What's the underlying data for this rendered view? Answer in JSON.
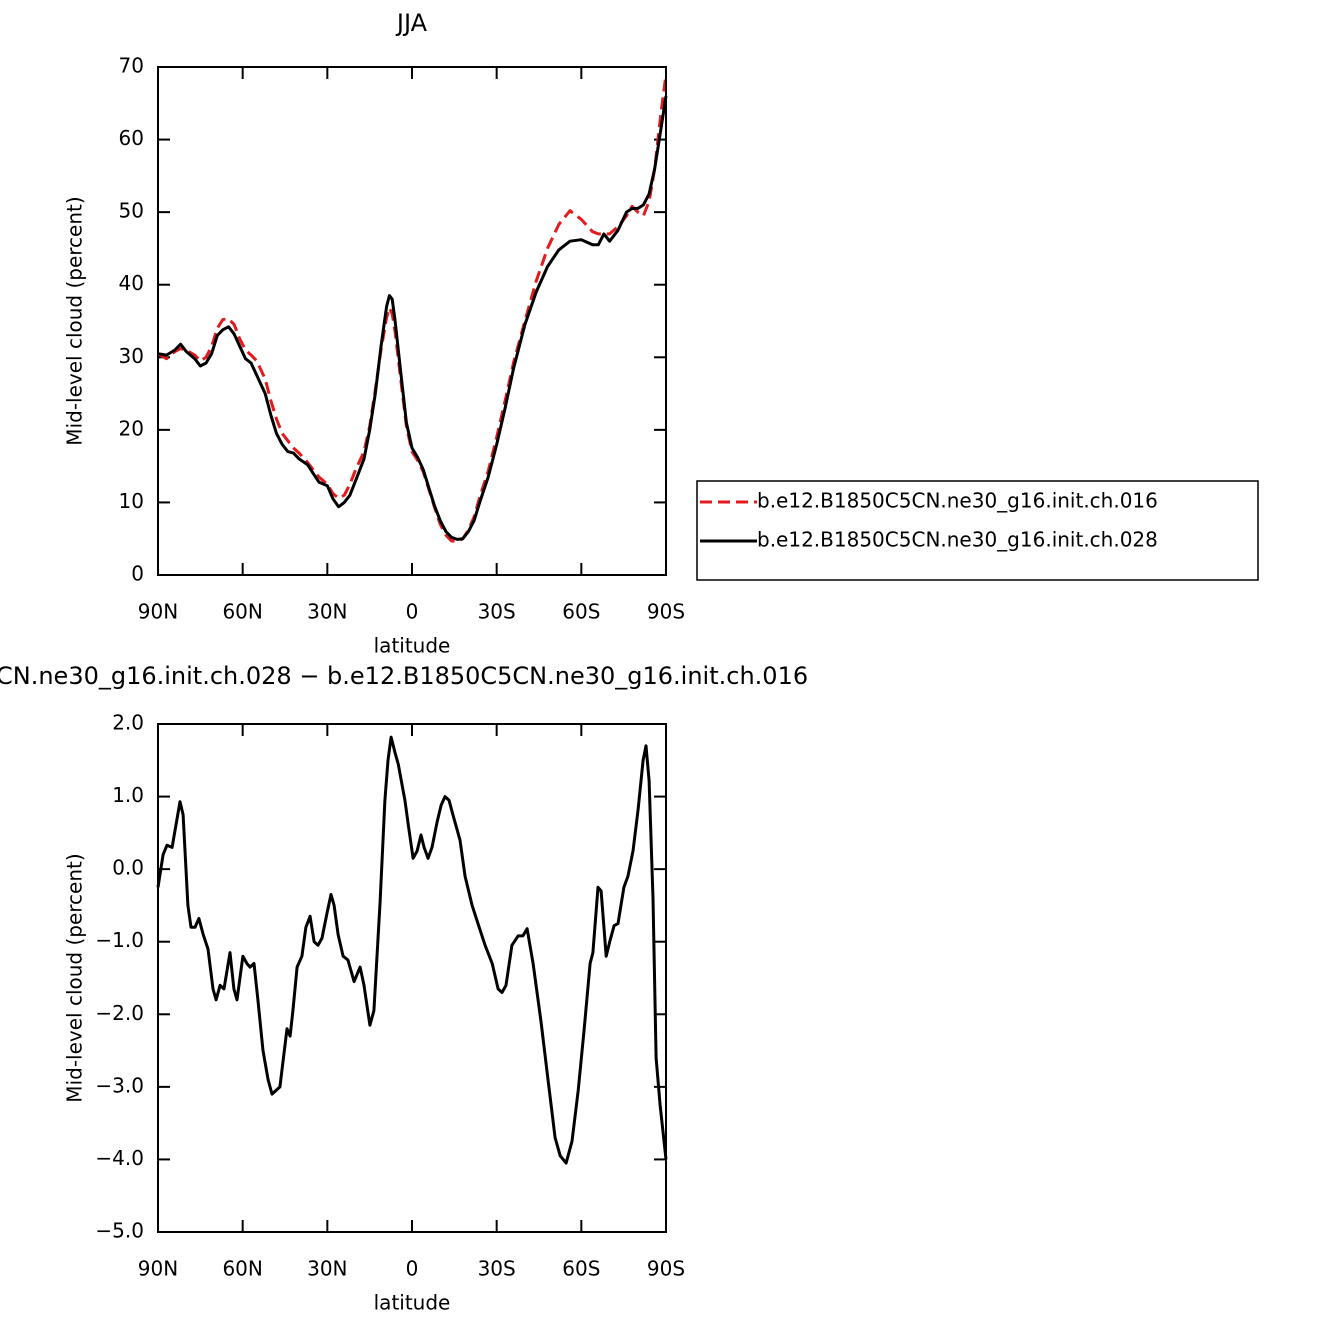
{
  "chart_data": [
    {
      "type": "line",
      "title": "JJA",
      "xlabel": "latitude",
      "ylabel": "Mid-level cloud (percent)",
      "xlim": [
        90,
        -90
      ],
      "ylim": [
        0,
        70
      ],
      "xticks": [
        {
          "value": 90,
          "label": "90N"
        },
        {
          "value": 60,
          "label": "60N"
        },
        {
          "value": 30,
          "label": "30N"
        },
        0,
        {
          "value": -30,
          "label": "30S"
        },
        {
          "value": -60,
          "label": "60S"
        },
        {
          "value": -90,
          "label": "90S"
        }
      ],
      "yticks": [
        0,
        10,
        20,
        30,
        40,
        50,
        60,
        70
      ],
      "legend": "right",
      "x": [
        90,
        87,
        84,
        82,
        80,
        77,
        75,
        73,
        71,
        69,
        67,
        65,
        63,
        61,
        59,
        57,
        55,
        52,
        50,
        48,
        46,
        44,
        42,
        40,
        37,
        35,
        33,
        30,
        28,
        26,
        24,
        22,
        20,
        17,
        15,
        13,
        11,
        9,
        8,
        7,
        6,
        4,
        2,
        0,
        -2,
        -4,
        -6,
        -8,
        -10,
        -12,
        -14,
        -16,
        -18,
        -20,
        -22,
        -24,
        -27,
        -30,
        -33,
        -36,
        -40,
        -44,
        -48,
        -52,
        -56,
        -60,
        -64,
        -66,
        -68,
        -70,
        -73,
        -76,
        -78,
        -80,
        -82,
        -84,
        -86,
        -88,
        -90
      ],
      "series": [
        {
          "name": "b.e12.B1850C5CN.ne30_g16.init.ch.016",
          "color": "#e41a1c",
          "style": "dashed",
          "values": [
            30.5,
            29.8,
            30.8,
            31.2,
            31.0,
            30.3,
            29.5,
            30.0,
            31.5,
            34.0,
            35.2,
            35.3,
            34.5,
            32.5,
            31.0,
            30.3,
            29.5,
            27.0,
            24.0,
            21.5,
            19.5,
            18.5,
            17.5,
            16.8,
            15.5,
            14.5,
            13.5,
            12.5,
            11.2,
            10.6,
            11.0,
            12.5,
            14.5,
            17.0,
            20.5,
            25.5,
            31.0,
            35.5,
            36.8,
            36.0,
            33.5,
            27.0,
            20.5,
            17.0,
            15.8,
            14.2,
            11.8,
            9.3,
            7.0,
            5.5,
            4.7,
            4.6,
            5.0,
            6.2,
            8.0,
            10.7,
            14.3,
            19.0,
            24.0,
            29.3,
            35.0,
            40.5,
            45.0,
            48.3,
            50.2,
            49.0,
            47.3,
            47.0,
            47.0,
            47.0,
            48.0,
            49.5,
            50.8,
            50.0,
            49.5,
            51.5,
            56.0,
            63.0,
            69.0
          ]
        },
        {
          "name": "b.e12.B1850C5CN.ne30_g16.init.ch.028",
          "color": "#000000",
          "style": "solid",
          "values": [
            30.5,
            30.3,
            31.0,
            31.8,
            30.8,
            29.8,
            28.8,
            29.2,
            30.5,
            33.0,
            33.8,
            34.2,
            33.2,
            31.5,
            29.8,
            29.2,
            27.5,
            25.0,
            22.0,
            19.5,
            18.0,
            17.0,
            16.8,
            16.0,
            15.2,
            14.0,
            12.8,
            12.3,
            10.5,
            9.4,
            10.0,
            11.0,
            13.0,
            16.0,
            20.0,
            25.0,
            31.5,
            37.0,
            38.5,
            38.0,
            35.0,
            28.0,
            21.0,
            17.5,
            16.2,
            14.5,
            12.0,
            9.5,
            7.5,
            6.0,
            5.2,
            4.9,
            5.0,
            6.0,
            7.5,
            10.0,
            13.5,
            18.0,
            23.0,
            28.5,
            34.5,
            39.0,
            42.5,
            44.8,
            46.0,
            46.2,
            45.5,
            45.5,
            47.0,
            46.0,
            47.5,
            50.0,
            50.5,
            50.5,
            51.0,
            52.5,
            56.0,
            61.0,
            66.0
          ]
        }
      ]
    },
    {
      "type": "line",
      "title": "CN.ne30_g16.init.ch.028 − b.e12.B1850C5CN.ne30_g16.init.ch.016",
      "xlabel": "latitude",
      "ylabel": "Mid-level cloud (percent)",
      "xlim": [
        90,
        -90
      ],
      "ylim": [
        -5,
        2
      ],
      "xticks": [
        {
          "value": 90,
          "label": "90N"
        },
        {
          "value": 60,
          "label": "60N"
        },
        {
          "value": 30,
          "label": "30N"
        },
        0,
        {
          "value": -30,
          "label": "30S"
        },
        {
          "value": -60,
          "label": "60S"
        },
        {
          "value": -90,
          "label": "90S"
        }
      ],
      "yticks": [
        {
          "value": -5,
          "label": "−5.0"
        },
        {
          "value": -4,
          "label": "−4.0"
        },
        {
          "value": -3,
          "label": "−3.0"
        },
        {
          "value": -2,
          "label": "−2.0"
        },
        {
          "value": -1,
          "label": "−1.0"
        },
        {
          "value": 0,
          "label": "0.0"
        },
        {
          "value": 1,
          "label": "1.0"
        },
        {
          "value": 2,
          "label": "2.0"
        }
      ],
      "x": [
        90,
        88.2,
        86.8,
        85,
        82.2,
        81.1,
        79.4,
        78.3,
        76.9,
        75.5,
        74,
        72.3,
        70.5,
        69.4,
        68,
        66.6,
        64.5,
        63.1,
        62,
        59.9,
        58.5,
        57.4,
        56,
        54.6,
        52.8,
        51,
        49.6,
        46.8,
        44.3,
        43.2,
        42.2,
        40.7,
        39,
        37.6,
        36.1,
        34.7,
        33.3,
        31.9,
        30.1,
        28.7,
        27.6,
        26.2,
        24.4,
        22.7,
        20.5,
        18.4,
        17,
        14.9,
        13.5,
        11.3,
        9.6,
        8.5,
        7.4,
        6,
        4.9,
        2.5,
        1.1,
        -0.4,
        -1.8,
        -3.2,
        -4.3,
        -5.7,
        -7.1,
        -8.9,
        -10.3,
        -11.7,
        -13.1,
        -14.5,
        -17,
        -18.8,
        -21.3,
        -23.4,
        -25.9,
        -28.4,
        -30.5,
        -31.9,
        -33.3,
        -35.4,
        -37.6,
        -39.3,
        -40.8,
        -42.9,
        -45.7,
        -48.2,
        -50.7,
        -52.5,
        -54.6,
        -56.7,
        -58.9,
        -61,
        -63.1,
        -64.1,
        -65.9,
        -67,
        -68.8,
        -70.2,
        -71.6,
        -73,
        -75.1,
        -76.5,
        -78.3,
        -80.1,
        -81.9,
        -82.9,
        -84,
        -85.4,
        -86.5,
        -87.9,
        -90
      ],
      "series": [
        {
          "color": "#000000",
          "style": "solid",
          "values": [
            -0.25,
            0.2,
            0.33,
            0.3,
            0.93,
            0.75,
            -0.5,
            -0.8,
            -0.8,
            -0.68,
            -0.9,
            -1.1,
            -1.65,
            -1.8,
            -1.6,
            -1.65,
            -1.15,
            -1.65,
            -1.8,
            -1.2,
            -1.3,
            -1.35,
            -1.3,
            -1.8,
            -2.5,
            -2.9,
            -3.1,
            -3.0,
            -2.2,
            -2.3,
            -1.95,
            -1.35,
            -1.2,
            -0.8,
            -0.65,
            -1.0,
            -1.05,
            -0.95,
            -0.6,
            -0.35,
            -0.5,
            -0.9,
            -1.2,
            -1.25,
            -1.55,
            -1.35,
            -1.6,
            -2.15,
            -1.95,
            -0.45,
            0.95,
            1.5,
            1.82,
            1.6,
            1.45,
            0.95,
            0.55,
            0.15,
            0.25,
            0.47,
            0.3,
            0.15,
            0.3,
            0.65,
            0.88,
            1.0,
            0.95,
            0.75,
            0.4,
            -0.1,
            -0.5,
            -0.75,
            -1.05,
            -1.3,
            -1.65,
            -1.7,
            -1.6,
            -1.05,
            -0.92,
            -0.92,
            -0.82,
            -1.3,
            -2.1,
            -2.9,
            -3.7,
            -3.95,
            -4.05,
            -3.75,
            -3.05,
            -2.2,
            -1.3,
            -1.15,
            -0.25,
            -0.3,
            -1.2,
            -0.98,
            -0.78,
            -0.75,
            -0.25,
            -0.1,
            0.25,
            0.82,
            1.5,
            1.7,
            1.22,
            -0.4,
            -2.6,
            -3.25,
            -4.0
          ]
        }
      ]
    }
  ]
}
